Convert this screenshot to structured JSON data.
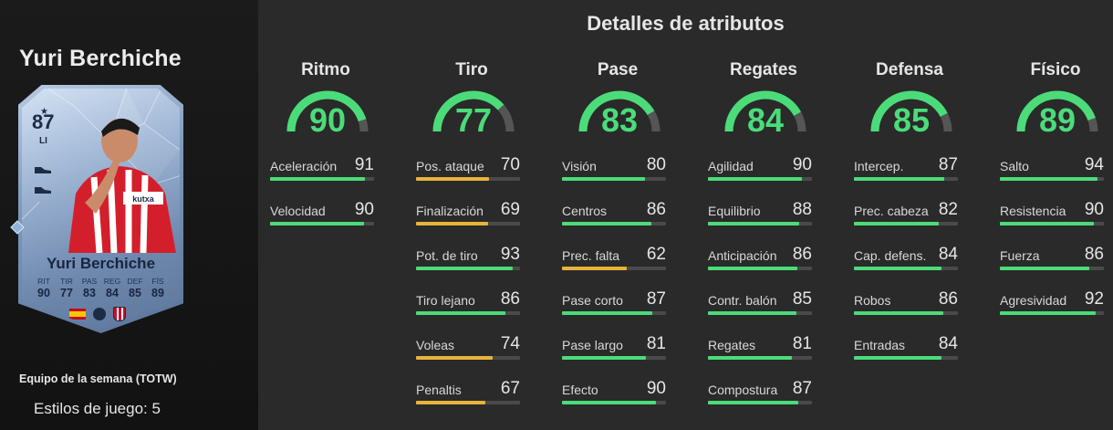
{
  "player": {
    "name": "Yuri Berchiche",
    "card_rating": "87",
    "card_position": "LI",
    "card_name": "Yuri Berchiche",
    "card_stats": [
      {
        "label": "RIT",
        "value": "90"
      },
      {
        "label": "TIR",
        "value": "77"
      },
      {
        "label": "PAS",
        "value": "83"
      },
      {
        "label": "REG",
        "value": "84"
      },
      {
        "label": "DEF",
        "value": "85"
      },
      {
        "label": "FÍS",
        "value": "89"
      }
    ],
    "program": "Equipo de la semana (TOTW)",
    "playstyles": "Estilos de juego: 5"
  },
  "details_title": "Detalles de atributos",
  "colors": {
    "green": "#4bdc79",
    "amber": "#e8b33a",
    "gauge_track": "#555555"
  },
  "categories": [
    {
      "title": "Ritmo",
      "value": 90,
      "stats": [
        {
          "name": "Aceleración",
          "value": 91
        },
        {
          "name": "Velocidad",
          "value": 90
        }
      ]
    },
    {
      "title": "Tiro",
      "value": 77,
      "stats": [
        {
          "name": "Pos. ataque",
          "value": 70
        },
        {
          "name": "Finalización",
          "value": 69
        },
        {
          "name": "Pot. de tiro",
          "value": 93
        },
        {
          "name": "Tiro lejano",
          "value": 86
        },
        {
          "name": "Voleas",
          "value": 74
        },
        {
          "name": "Penaltis",
          "value": 67
        }
      ]
    },
    {
      "title": "Pase",
      "value": 83,
      "stats": [
        {
          "name": "Visión",
          "value": 80
        },
        {
          "name": "Centros",
          "value": 86
        },
        {
          "name": "Prec. falta",
          "value": 62
        },
        {
          "name": "Pase corto",
          "value": 87
        },
        {
          "name": "Pase largo",
          "value": 81
        },
        {
          "name": "Efecto",
          "value": 90
        }
      ]
    },
    {
      "title": "Regates",
      "value": 84,
      "stats": [
        {
          "name": "Agilidad",
          "value": 90
        },
        {
          "name": "Equilibrio",
          "value": 88
        },
        {
          "name": "Anticipación",
          "value": 86
        },
        {
          "name": "Contr. balón",
          "value": 85
        },
        {
          "name": "Regates",
          "value": 81
        },
        {
          "name": "Compostura",
          "value": 87
        }
      ]
    },
    {
      "title": "Defensa",
      "value": 85,
      "stats": [
        {
          "name": "Intercep.",
          "value": 87
        },
        {
          "name": "Prec. cabeza",
          "value": 82
        },
        {
          "name": "Cap. defens.",
          "value": 84
        },
        {
          "name": "Robos",
          "value": 86
        },
        {
          "name": "Entradas",
          "value": 84
        }
      ]
    },
    {
      "title": "Físico",
      "value": 89,
      "stats": [
        {
          "name": "Salto",
          "value": 94
        },
        {
          "name": "Resistencia",
          "value": 90
        },
        {
          "name": "Fuerza",
          "value": 86
        },
        {
          "name": "Agresividad",
          "value": 92
        }
      ]
    }
  ]
}
